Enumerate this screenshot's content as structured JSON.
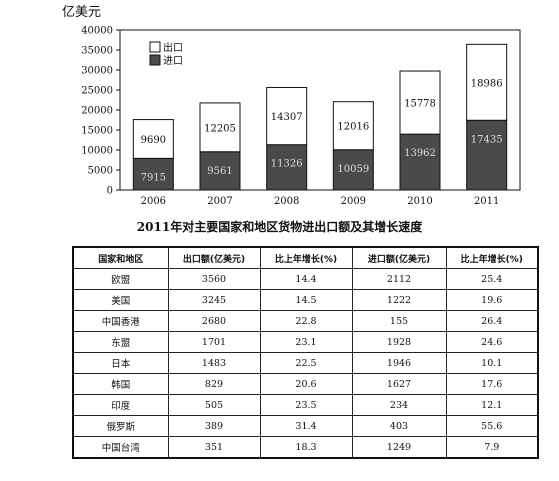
{
  "chart_data": {
    "type": "bar",
    "stacked": true,
    "title": "",
    "ylabel": "亿美元",
    "xlabel": "",
    "ylim": [
      0,
      40000
    ],
    "yticks": [
      0,
      5000,
      10000,
      15000,
      20000,
      25000,
      30000,
      35000,
      40000
    ],
    "categories": [
      "2006",
      "2007",
      "2008",
      "2009",
      "2010",
      "2011"
    ],
    "series": [
      {
        "name": "进口",
        "values": [
          7915,
          9561,
          11326,
          10059,
          13962,
          17435
        ],
        "color": "#4a4a4a"
      },
      {
        "name": "出口",
        "values": [
          9690,
          12205,
          14307,
          12016,
          15778,
          18986
        ],
        "color": "#ffffff"
      }
    ],
    "legend": [
      "出口",
      "进口"
    ],
    "legend_position": "top-left",
    "grid": false
  },
  "table": {
    "title": "2011年对主要国家和地区货物进出口额及其增长速度",
    "headers": [
      "国家和地区",
      "出口额(亿美元)",
      "比上年增长(%)",
      "进口额(亿美元)",
      "比上年增长(%)"
    ],
    "rows": [
      [
        "欧盟",
        "3560",
        "14.4",
        "2112",
        "25.4"
      ],
      [
        "美国",
        "3245",
        "14.5",
        "1222",
        "19.6"
      ],
      [
        "中国香港",
        "2680",
        "22.8",
        "155",
        "26.4"
      ],
      [
        "东盟",
        "1701",
        "23.1",
        "1928",
        "24.6"
      ],
      [
        "日本",
        "1483",
        "22.5",
        "1946",
        "10.1"
      ],
      [
        "韩国",
        "829",
        "20.6",
        "1627",
        "17.6"
      ],
      [
        "印度",
        "505",
        "23.5",
        "234",
        "12.1"
      ],
      [
        "俄罗斯",
        "389",
        "31.4",
        "403",
        "55.6"
      ],
      [
        "中国台湾",
        "351",
        "18.3",
        "1249",
        "7.9"
      ]
    ]
  }
}
